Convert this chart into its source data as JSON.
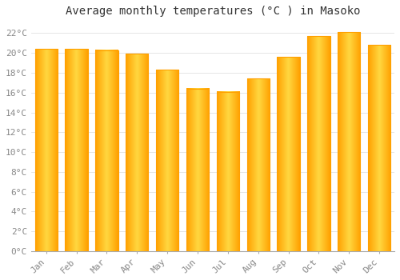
{
  "title": "Average monthly temperatures (°C ) in Masoko",
  "months": [
    "Jan",
    "Feb",
    "Mar",
    "Apr",
    "May",
    "Jun",
    "Jul",
    "Aug",
    "Sep",
    "Oct",
    "Nov",
    "Dec"
  ],
  "values": [
    20.4,
    20.4,
    20.3,
    19.9,
    18.3,
    16.4,
    16.1,
    17.4,
    19.6,
    21.7,
    22.1,
    20.8
  ],
  "bar_color_center": "#FFD740",
  "bar_color_edge": "#FFA000",
  "background_color": "#FFFFFF",
  "plot_bg_color": "#FFFFFF",
  "grid_color": "#E0E0E0",
  "ylim": [
    0,
    23
  ],
  "ytick_step": 2,
  "title_fontsize": 10,
  "tick_fontsize": 8,
  "font_family": "monospace",
  "tick_color": "#888888"
}
